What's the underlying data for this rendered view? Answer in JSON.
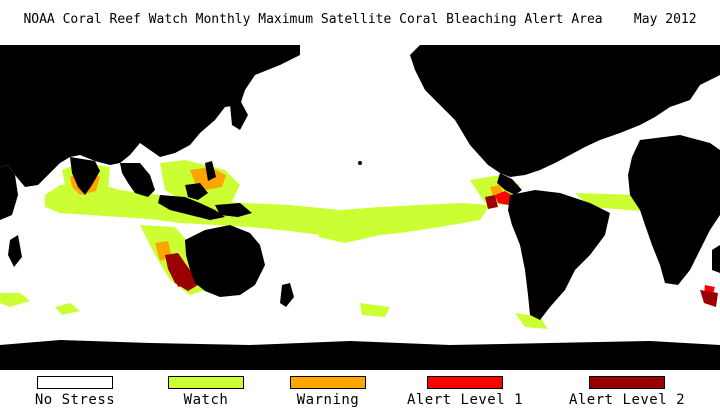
{
  "title": "NOAA Coral Reef Watch Monthly Maximum Satellite Coral Bleaching Alert Area    May 2012",
  "colors": {
    "land": "#000000",
    "no_stress": "#ffffff",
    "watch": "#ccff33",
    "warning": "#ffa500",
    "alert1": "#ff0000",
    "alert2": "#990000"
  },
  "legend": [
    {
      "label": "No Stress",
      "color": "#ffffff"
    },
    {
      "label": "Watch",
      "color": "#ccff33"
    },
    {
      "label": "Warning",
      "color": "#ffa500"
    },
    {
      "label": "Alert Level 1",
      "color": "#ff0000"
    },
    {
      "label": "Alert Level 2",
      "color": "#990000"
    }
  ]
}
